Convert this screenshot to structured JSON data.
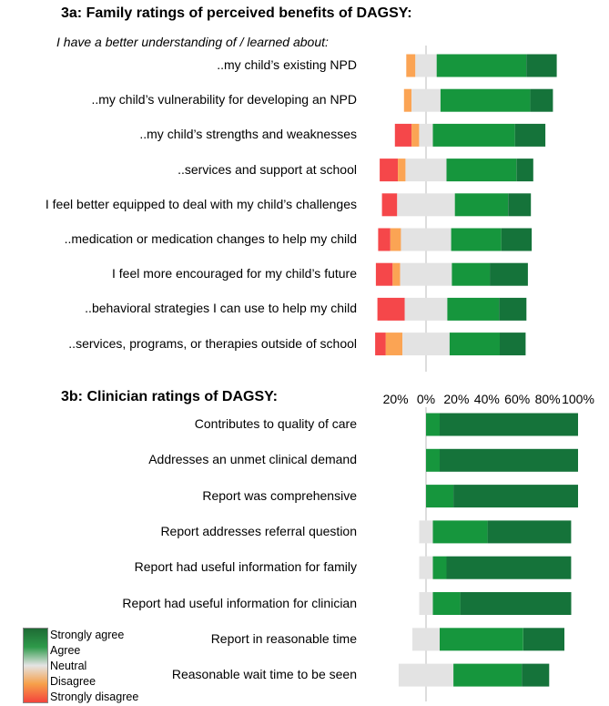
{
  "colors": {
    "strongly_disagree": "#f5474a",
    "disagree": "#fba454",
    "neutral": "#e3e3e3",
    "agree": "#16963d",
    "strongly_agree": "#15733a",
    "axis_line": "#bbbbbb"
  },
  "legend": {
    "items": [
      "Strongly agree",
      "Agree",
      "Neutral",
      "Disagree",
      "Strongly disagree"
    ]
  },
  "chart_data": [
    {
      "type": "bar",
      "subtype": "diverging-stacked",
      "title": "3a: Family ratings of perceived benefits of DAGSY:",
      "subtitle": "I have a better understanding of / learned about:",
      "categories": [
        "..my child’s existing NPD",
        "..my child’s vulnerability for developing an NPD",
        "..my child’s strengths and weaknesses",
        "..services and support at school",
        "I feel better equipped to deal with my child’s challenges",
        "..medication or medication changes to help my child",
        "I feel more encouraged for my child’s future",
        "..behavioral strategies I can use to help my child",
        "..services, programs, or therapies outside of school"
      ],
      "series": [
        {
          "name": "Strongly disagree",
          "values": [
            0,
            0,
            11,
            12,
            10,
            8,
            11,
            18,
            7
          ]
        },
        {
          "name": "Disagree",
          "values": [
            6,
            5,
            5,
            5,
            0,
            7,
            5,
            0,
            11
          ]
        },
        {
          "name": "Neutral",
          "values": [
            14,
            19,
            9,
            27,
            38,
            33,
            34,
            28,
            31
          ]
        },
        {
          "name": "Agree",
          "values": [
            59,
            59,
            54,
            46,
            35,
            33,
            25,
            34,
            33
          ]
        },
        {
          "name": "Strongly agree",
          "values": [
            20,
            15,
            20,
            11,
            15,
            20,
            25,
            18,
            17
          ]
        }
      ],
      "xlim": [
        -30,
        100
      ]
    },
    {
      "type": "bar",
      "subtype": "diverging-stacked",
      "title": "3b: Clinician ratings of DAGSY:",
      "categories": [
        "Contributes to quality of care",
        "Addresses an unmet clinical demand",
        "Report was comprehensive",
        "Report addresses referral question",
        "Report had useful information for family",
        "Report had useful information for clinician",
        "Report in reasonable time",
        "Reasonable wait time to be seen"
      ],
      "series": [
        {
          "name": "Strongly disagree",
          "values": [
            0,
            0,
            0,
            0,
            0,
            0,
            0,
            0
          ]
        },
        {
          "name": "Disagree",
          "values": [
            0,
            0,
            0,
            0,
            0,
            0,
            0,
            0
          ]
        },
        {
          "name": "Neutral",
          "values": [
            0,
            0,
            0,
            9,
            9,
            9,
            18,
            36
          ]
        },
        {
          "name": "Agree",
          "values": [
            9,
            9,
            18,
            36,
            9,
            18,
            55,
            45
          ]
        },
        {
          "name": "Strongly agree",
          "values": [
            91,
            91,
            82,
            55,
            82,
            73,
            27,
            18
          ]
        }
      ],
      "xlim": [
        -30,
        100
      ]
    }
  ],
  "axis": {
    "ticks": [
      -20,
      0,
      20,
      40,
      60,
      80,
      100
    ],
    "tick_labels": [
      "20%",
      "0%",
      "20%",
      "40%",
      "60%",
      "80%",
      "100%"
    ]
  }
}
